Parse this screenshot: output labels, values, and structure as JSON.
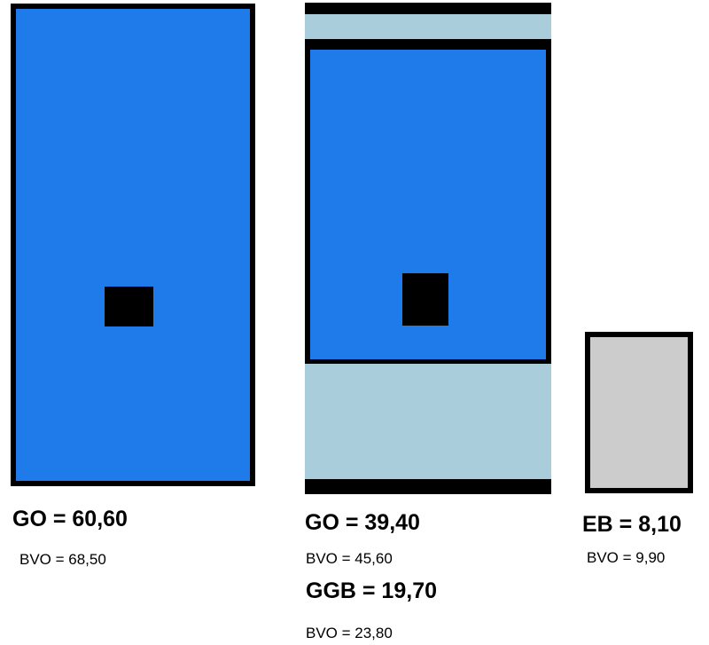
{
  "diagrams": [
    {
      "main_label": "GO = 60,60",
      "sub_label": "BVO = 68,50"
    },
    {
      "main_label": "GO = 39,40",
      "sub_label": "BVO = 45,60",
      "secondary_label": "GGB = 19,70",
      "secondary_sub_label": "BVO = 23,80"
    },
    {
      "main_label": "EB = 8,10",
      "sub_label": "BVO = 9,90"
    }
  ],
  "colors": {
    "room_blue": "#1f7bea",
    "band_light_blue": "#a9cddb",
    "storage_grey": "#cccccc",
    "outline": "#000000"
  }
}
